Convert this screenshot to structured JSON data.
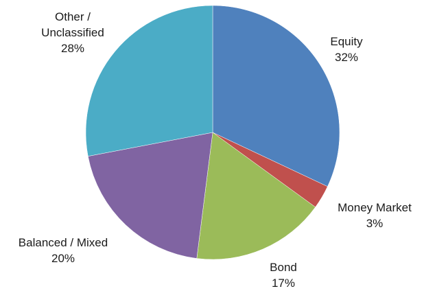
{
  "chart_data": {
    "type": "pie",
    "start_angle_deg": 0,
    "direction": "clockwise",
    "legend": "none",
    "slices": [
      {
        "name": "Equity",
        "value": 32,
        "label": "32%",
        "color": "#4F81BD"
      },
      {
        "name": "Money Market",
        "value": 3,
        "label": "3%",
        "color": "#C0504D"
      },
      {
        "name": "Bond",
        "value": 17,
        "label": "17%",
        "color": "#9BBB59"
      },
      {
        "name": "Balanced / Mixed",
        "value": 20,
        "label": "20%",
        "color": "#8064A2"
      },
      {
        "name": "Other / Unclassified",
        "value": 28,
        "label": "28%",
        "color": "#4BACC6"
      }
    ]
  }
}
